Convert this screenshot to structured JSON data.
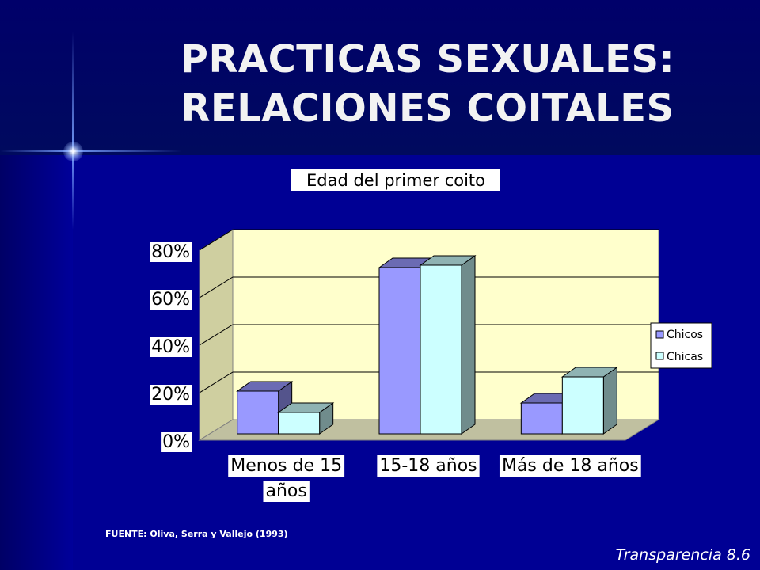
{
  "slide": {
    "title_line1": "PRACTICAS SEXUALES:",
    "title_line2": "RELACIONES COITALES",
    "source": "FUENTE: Oliva, Serra y Vallejo  (1993)",
    "footer": "Transparencia 8.6"
  },
  "colors": {
    "background": "#000080",
    "plot_wall": "#ffffcc",
    "chicos": "#9999ff",
    "chicas": "#ccffff"
  },
  "chart_data": {
    "type": "bar",
    "title": "Edad del primer coito",
    "categories": [
      [
        "Menos de 15",
        "años"
      ],
      [
        "15-18 años"
      ],
      [
        "Más de 18 años"
      ]
    ],
    "series": [
      {
        "name": "Chicos",
        "values": [
          18,
          70,
          13
        ],
        "color": "#9999ff"
      },
      {
        "name": "Chicas",
        "values": [
          9,
          71,
          24
        ],
        "color": "#ccffff"
      }
    ],
    "ylim": [
      0,
      80
    ],
    "yticks": [
      "0%",
      "20%",
      "40%",
      "60%",
      "80%"
    ],
    "ytick_values": [
      0,
      20,
      40,
      60,
      80
    ],
    "grid": true,
    "legend_position": "right",
    "style": "3d"
  }
}
